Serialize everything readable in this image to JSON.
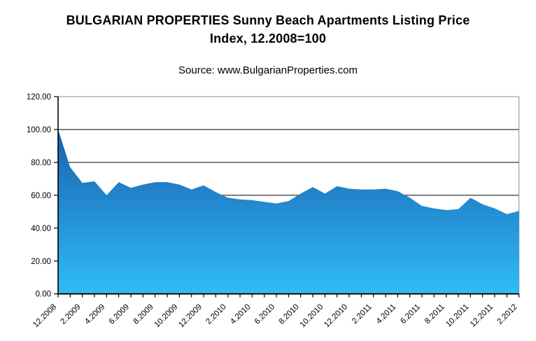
{
  "header": {
    "title_line1": "BULGARIAN PROPERTIES Sunny Beach Apartments Listing Price",
    "title_line2": "Index, 12.2008=100",
    "source": "Source: www.BulgarianProperties.com"
  },
  "chart_data": {
    "type": "area",
    "title": "BULGARIAN PROPERTIES Sunny Beach Apartments Listing Price Index, 12.2008=100",
    "subtitle": "Source: www.BulgarianProperties.com",
    "x": [
      "12.2008",
      "1.2009",
      "2.2009",
      "3.2009",
      "4.2009",
      "5.2009",
      "6.2009",
      "7.2009",
      "8.2009",
      "9.2009",
      "10.2009",
      "11.2009",
      "12.2009",
      "1.2010",
      "2.2010",
      "3.2010",
      "4.2010",
      "5.2010",
      "6.2010",
      "7.2010",
      "8.2010",
      "9.2010",
      "10.2010",
      "11.2010",
      "12.2010",
      "1.2011",
      "2.2011",
      "3.2011",
      "4.2011",
      "5.2011",
      "6.2011",
      "7.2011",
      "8.2011",
      "9.2011",
      "10.2011",
      "11.2011",
      "12.2011",
      "1.2012",
      "2.2012"
    ],
    "values": [
      100,
      77,
      67.5,
      68.5,
      60,
      68,
      64.5,
      66.5,
      68,
      68,
      66.5,
      63.5,
      66,
      62,
      58.5,
      57.5,
      57,
      56,
      55,
      56.5,
      61,
      65,
      61,
      65.5,
      64,
      63.5,
      63.5,
      64,
      62.5,
      58.5,
      53.5,
      52,
      51,
      51.5,
      58.5,
      54.5,
      52,
      48.5,
      50.5
    ],
    "x_label_every": 2,
    "xlabel": "",
    "ylabel": "",
    "ylim": [
      0,
      120
    ],
    "y_ticks": [
      0,
      20,
      40,
      60,
      80,
      100,
      120
    ],
    "y_tick_labels": [
      "0.00",
      "20.00",
      "40.00",
      "60.00",
      "80.00",
      "100.00",
      "120.00"
    ],
    "grid": "horizontal",
    "legend": "none",
    "colors": {
      "area_gradient_top": "#1a5fb0",
      "area_gradient_bottom": "#2fbdf5",
      "gridline": "#000000",
      "frame": "#8c8c8c",
      "axis": "#000000",
      "text": "#000000"
    }
  }
}
